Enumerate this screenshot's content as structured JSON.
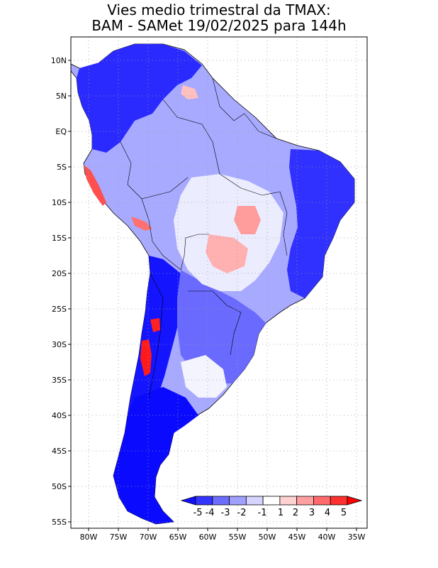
{
  "title": {
    "line1": "Vies medio trimestral da TMAX:",
    "line2": "BAM - SAMet 19/02/2025  para 144h"
  },
  "axes": {
    "lon_ticks": [
      "80W",
      "75W",
      "70W",
      "65W",
      "60W",
      "55W",
      "50W",
      "45W",
      "40W",
      "35W"
    ],
    "lat_ticks": [
      "10N",
      "5N",
      "EQ",
      "5S",
      "10S",
      "15S",
      "20S",
      "25S",
      "30S",
      "35S",
      "40S",
      "45S",
      "50S",
      "55S"
    ]
  },
  "colorbar": {
    "labels": [
      "-5",
      "-4",
      "-3",
      "-2",
      "-1",
      "1",
      "2",
      "3",
      "4",
      "5"
    ],
    "colors": [
      "#1010ff",
      "#3434ff",
      "#6c6cff",
      "#a0a0ff",
      "#d4d4ff",
      "#ffffff",
      "#ffd2d2",
      "#ffa0a0",
      "#ff6a6a",
      "#ff3030",
      "#ff0000"
    ]
  },
  "chart_data": {
    "type": "heatmap",
    "title": "Vies medio trimestral da TMAX: BAM - SAMet 19/02/2025  para 144h",
    "region": "South America",
    "xlim": [
      "83W",
      "34W"
    ],
    "ylim": [
      "56S",
      "13N"
    ],
    "grid": true,
    "legend": "bottom-right colorbar",
    "color_levels": [
      -5,
      -4,
      -3,
      -2,
      -1,
      1,
      2,
      3,
      4,
      5
    ]
  }
}
